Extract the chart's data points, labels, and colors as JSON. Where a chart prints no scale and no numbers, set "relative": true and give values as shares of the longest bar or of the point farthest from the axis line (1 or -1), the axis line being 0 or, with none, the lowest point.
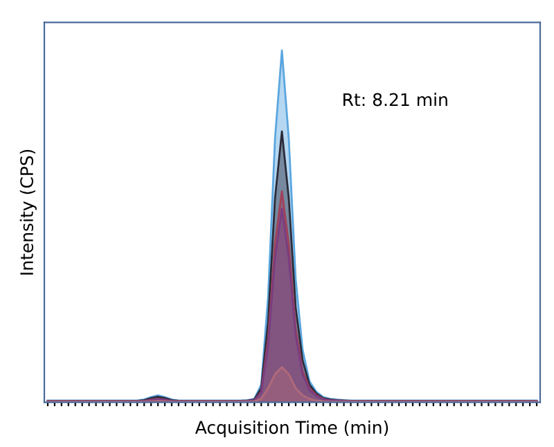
{
  "chart_data": {
    "type": "area",
    "relative": true,
    "xlabel": "Acquisition Time (min)",
    "ylabel": "Intensity (CPS)",
    "annotations": [
      "Rt: 8.21 min"
    ],
    "grid": false,
    "legend": false,
    "categories": [
      null,
      null,
      null,
      null,
      null,
      null,
      null,
      null,
      null,
      null,
      null,
      null,
      null,
      null,
      null,
      null,
      null,
      null,
      null,
      null,
      null,
      null,
      null,
      null,
      null,
      null,
      null,
      null,
      null,
      null,
      null,
      null,
      null,
      null,
      null,
      null,
      null,
      null,
      null,
      null,
      null,
      null,
      null,
      null,
      null,
      null,
      null,
      null,
      null,
      null,
      null,
      null,
      null,
      null,
      null,
      null,
      null,
      null,
      null,
      null,
      null,
      null,
      null,
      null,
      null,
      null,
      null,
      null,
      null,
      null,
      null,
      null
    ],
    "series": [
      {
        "color": "#5aa6e0",
        "values": [
          0.005,
          0.005,
          0.005,
          0.005,
          0.005,
          0.005,
          0.005,
          0.005,
          0.005,
          0.005,
          0.005,
          0.005,
          0.005,
          0.005,
          0.008,
          0.015,
          0.02,
          0.015,
          0.008,
          0.005,
          0.005,
          0.005,
          0.005,
          0.005,
          0.005,
          0.005,
          0.005,
          0.005,
          0.005,
          0.006,
          0.01,
          0.05,
          0.3,
          0.75,
          1.0,
          0.75,
          0.35,
          0.15,
          0.06,
          0.03,
          0.015,
          0.01,
          0.008,
          0.006,
          0.005,
          0.005,
          0.005,
          0.005,
          0.005,
          0.005,
          0.005,
          0.005,
          0.005,
          0.005,
          0.005,
          0.005,
          0.005,
          0.005,
          0.005,
          0.005,
          0.005,
          0.005,
          0.005,
          0.005,
          0.005,
          0.005,
          0.005,
          0.005,
          0.005,
          0.005,
          0.005,
          0.005
        ]
      },
      {
        "color": "#2b2b3a",
        "values": [
          0.004,
          0.004,
          0.004,
          0.004,
          0.004,
          0.004,
          0.004,
          0.004,
          0.004,
          0.004,
          0.004,
          0.004,
          0.004,
          0.004,
          0.006,
          0.012,
          0.016,
          0.012,
          0.006,
          0.004,
          0.004,
          0.004,
          0.004,
          0.004,
          0.004,
          0.004,
          0.004,
          0.004,
          0.004,
          0.005,
          0.008,
          0.04,
          0.23,
          0.58,
          0.77,
          0.58,
          0.27,
          0.12,
          0.05,
          0.025,
          0.012,
          0.008,
          0.006,
          0.005,
          0.004,
          0.004,
          0.004,
          0.004,
          0.004,
          0.004,
          0.004,
          0.004,
          0.004,
          0.004,
          0.004,
          0.004,
          0.004,
          0.004,
          0.004,
          0.004,
          0.004,
          0.004,
          0.004,
          0.004,
          0.004,
          0.004,
          0.004,
          0.004,
          0.004,
          0.004,
          0.004,
          0.004
        ]
      },
      {
        "color": "#a0405a",
        "values": [
          0.003,
          0.003,
          0.003,
          0.003,
          0.003,
          0.003,
          0.003,
          0.003,
          0.003,
          0.003,
          0.003,
          0.003,
          0.003,
          0.003,
          0.004,
          0.008,
          0.01,
          0.008,
          0.004,
          0.003,
          0.003,
          0.003,
          0.003,
          0.003,
          0.003,
          0.003,
          0.003,
          0.003,
          0.003,
          0.004,
          0.006,
          0.03,
          0.18,
          0.45,
          0.6,
          0.45,
          0.21,
          0.09,
          0.04,
          0.02,
          0.01,
          0.006,
          0.005,
          0.004,
          0.003,
          0.003,
          0.003,
          0.003,
          0.003,
          0.003,
          0.003,
          0.003,
          0.003,
          0.003,
          0.003,
          0.003,
          0.003,
          0.003,
          0.003,
          0.003,
          0.003,
          0.003,
          0.003,
          0.003,
          0.003,
          0.003,
          0.003,
          0.003,
          0.003,
          0.003,
          0.003,
          0.003
        ]
      },
      {
        "color": "#7a3d80",
        "values": [
          0.003,
          0.003,
          0.003,
          0.003,
          0.003,
          0.003,
          0.003,
          0.003,
          0.003,
          0.003,
          0.003,
          0.003,
          0.003,
          0.003,
          0.004,
          0.007,
          0.009,
          0.007,
          0.004,
          0.003,
          0.003,
          0.003,
          0.003,
          0.003,
          0.003,
          0.003,
          0.003,
          0.003,
          0.003,
          0.004,
          0.006,
          0.028,
          0.16,
          0.41,
          0.55,
          0.41,
          0.19,
          0.08,
          0.035,
          0.018,
          0.009,
          0.006,
          0.005,
          0.004,
          0.003,
          0.003,
          0.003,
          0.003,
          0.003,
          0.003,
          0.003,
          0.003,
          0.003,
          0.003,
          0.003,
          0.003,
          0.003,
          0.003,
          0.003,
          0.003,
          0.003,
          0.003,
          0.003,
          0.003,
          0.003,
          0.003,
          0.003,
          0.003,
          0.003,
          0.003,
          0.003,
          0.003
        ]
      },
      {
        "color": "#b06a7a",
        "values": [
          0.002,
          0.002,
          0.002,
          0.002,
          0.002,
          0.002,
          0.002,
          0.002,
          0.002,
          0.002,
          0.002,
          0.002,
          0.002,
          0.002,
          0.002,
          0.003,
          0.004,
          0.003,
          0.002,
          0.002,
          0.002,
          0.002,
          0.002,
          0.002,
          0.002,
          0.002,
          0.002,
          0.002,
          0.002,
          0.002,
          0.003,
          0.01,
          0.04,
          0.08,
          0.1,
          0.08,
          0.04,
          0.02,
          0.01,
          0.005,
          0.003,
          0.002,
          0.002,
          0.002,
          0.002,
          0.002,
          0.002,
          0.002,
          0.002,
          0.002,
          0.002,
          0.002,
          0.002,
          0.002,
          0.002,
          0.002,
          0.002,
          0.002,
          0.002,
          0.002,
          0.002,
          0.002,
          0.002,
          0.002,
          0.002,
          0.002,
          0.002,
          0.002,
          0.002,
          0.002,
          0.002,
          0.002
        ]
      }
    ]
  }
}
